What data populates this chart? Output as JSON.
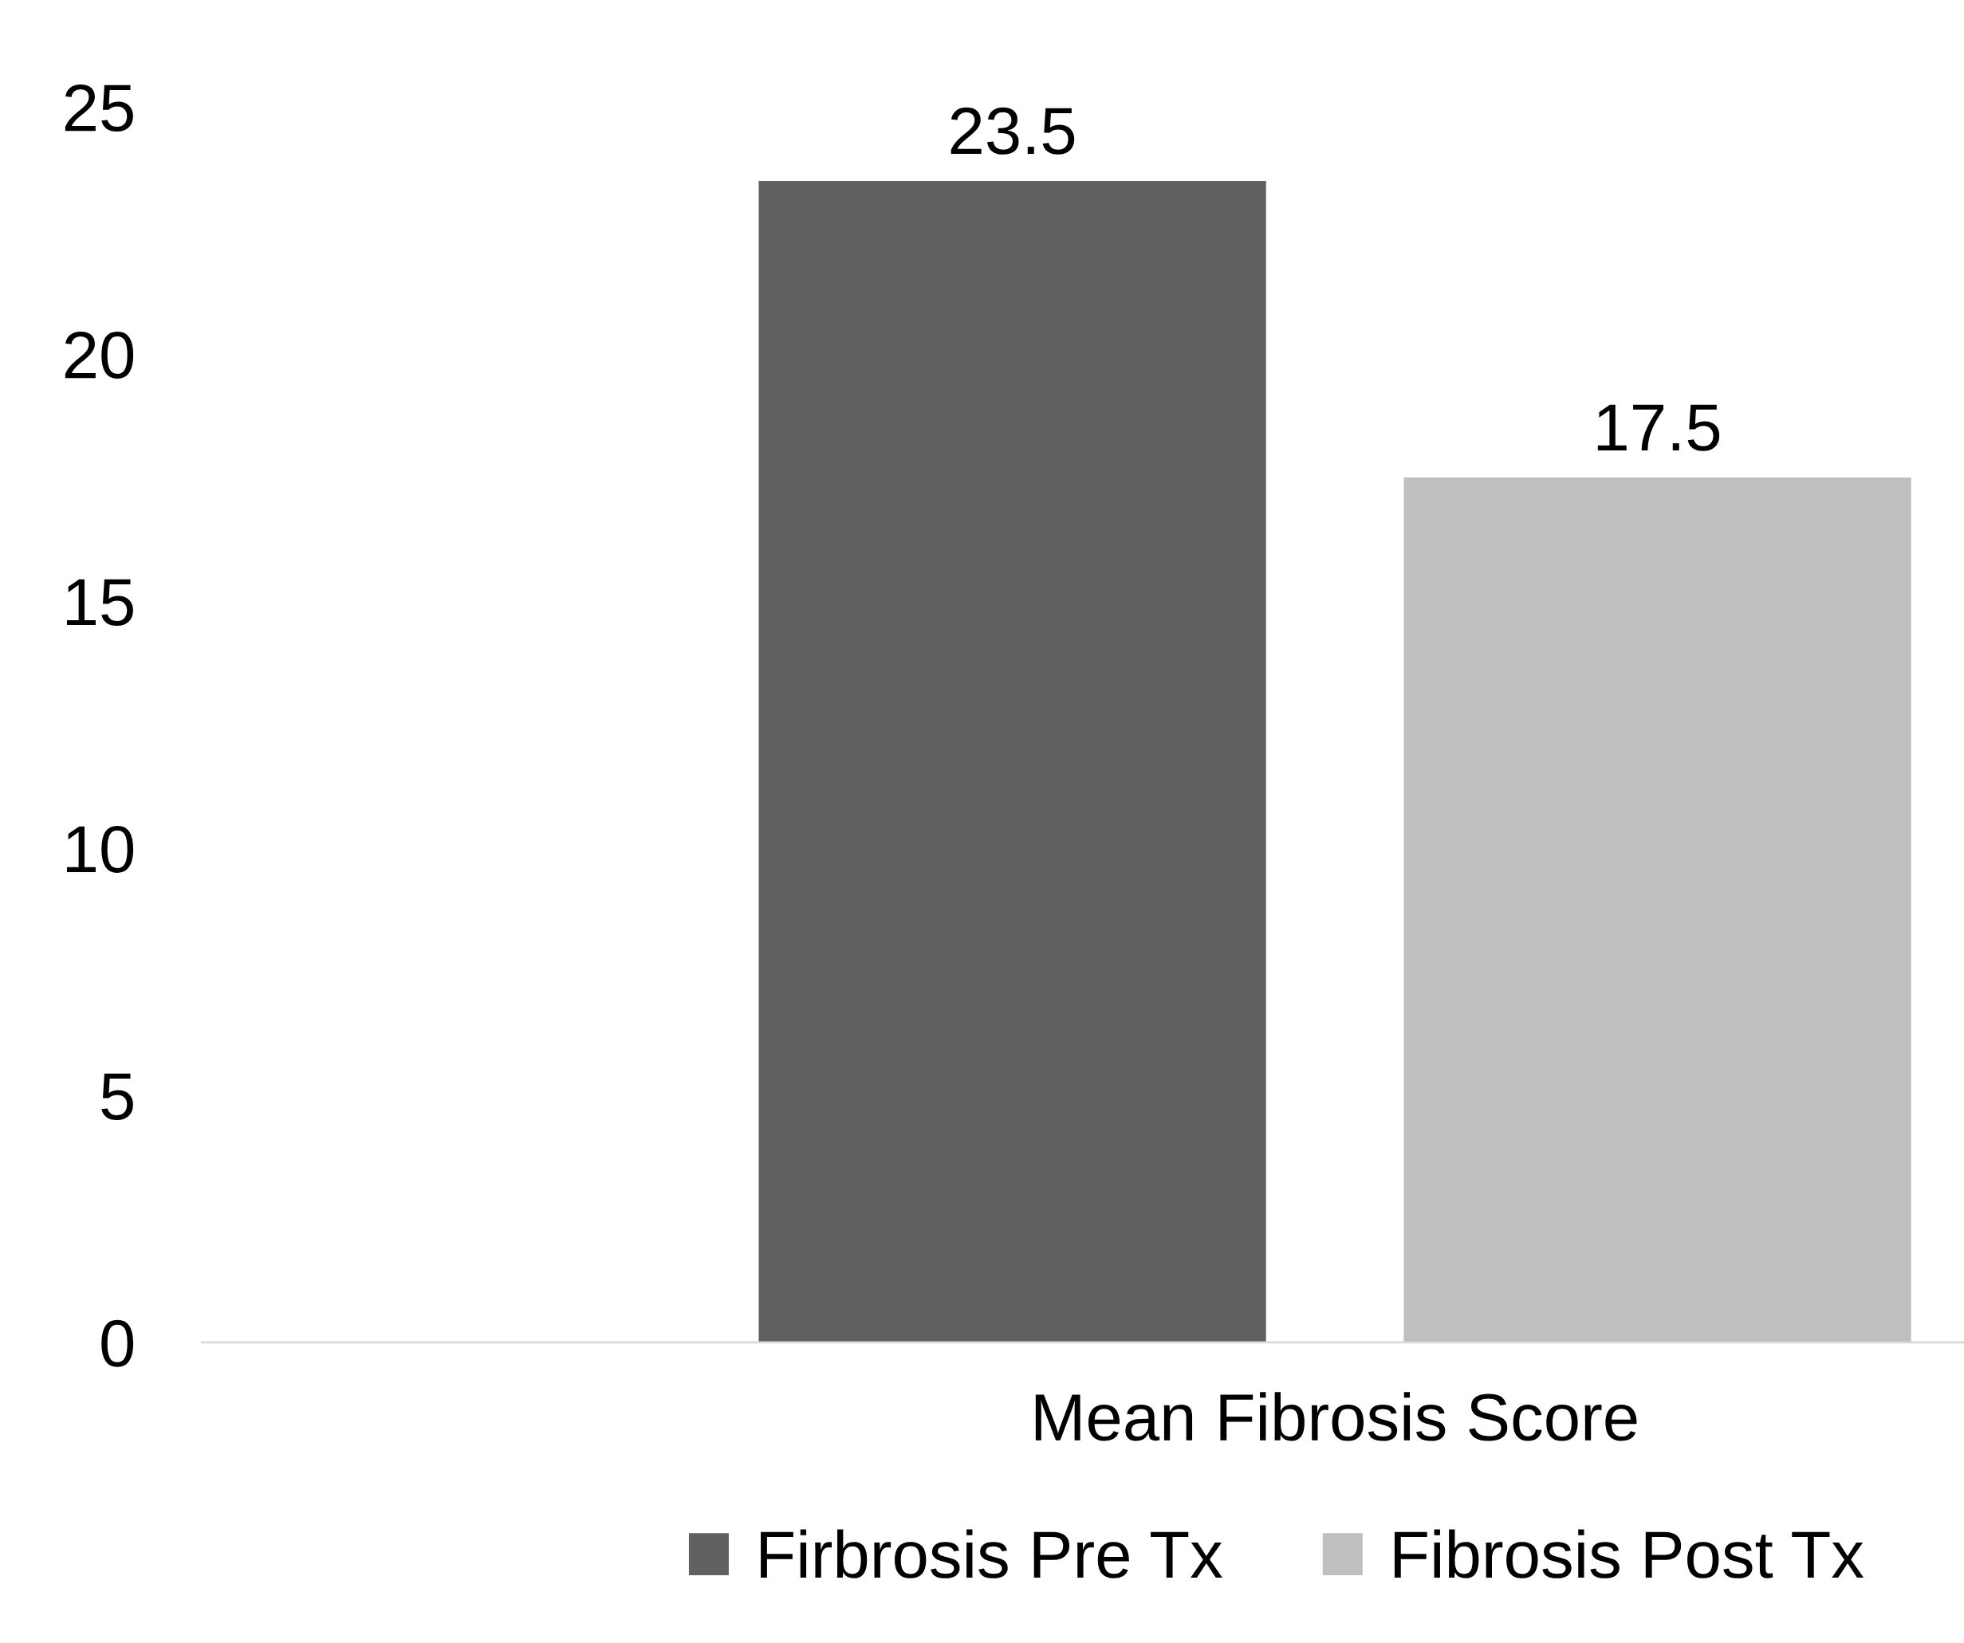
{
  "chart_data": {
    "type": "bar",
    "categories": [
      "Mean Fibrosis Score"
    ],
    "series": [
      {
        "name": "Firbrosis Pre Tx",
        "color": "#606060",
        "values": [
          23.5
        ]
      },
      {
        "name": "Fibrosis Post Tx",
        "color": "#bfbfbf",
        "values": [
          17.5
        ]
      }
    ],
    "ylim": [
      0,
      25
    ],
    "yticks": [
      0,
      5,
      10,
      15,
      20,
      25
    ],
    "data_labels": true,
    "grid": false,
    "legend": "bottom"
  }
}
